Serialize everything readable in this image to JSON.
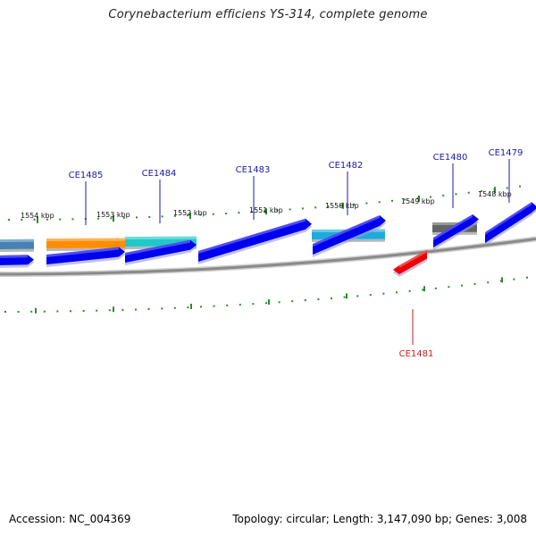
{
  "title": "Corynebacterium efficiens YS-314, complete genome",
  "footer": {
    "accession": "Accession: NC_004369",
    "summary": "Topology: circular; Length: 3,147,090 bp; Genes: 3,008"
  },
  "colors": {
    "backbone": "#8a8a8a",
    "tick": "#2e8b2e",
    "forward_cds": "#0000ee",
    "reverse_cds": "#ee0000",
    "label_forward": "#1a1aa8",
    "label_reverse": "#c81e1e"
  },
  "ticks": [
    {
      "label": "1554 kbp"
    },
    {
      "label": "1553 kbp"
    },
    {
      "label": "1552 kbp"
    },
    {
      "label": "1551 kbp"
    },
    {
      "label": "1550 kbp"
    },
    {
      "label": "1549 kbp"
    },
    {
      "label": "1548 kbp"
    }
  ],
  "genes": [
    {
      "name": "CE1485",
      "strand": "+",
      "color": "#ff8c00"
    },
    {
      "name": "CE1484",
      "strand": "+",
      "color": "#20c8c8"
    },
    {
      "name": "CE1483",
      "strand": "+",
      "color": "#0000ee"
    },
    {
      "name": "CE1482",
      "strand": "+",
      "color": "#1eaadc"
    },
    {
      "name": "CE1481",
      "strand": "-",
      "color": "#ee0000"
    },
    {
      "name": "CE1480",
      "strand": "+",
      "color": "#646464"
    },
    {
      "name": "CE1479",
      "strand": "+",
      "color": "#0000ee"
    }
  ],
  "partial_feature": {
    "color": "#4682b4"
  }
}
